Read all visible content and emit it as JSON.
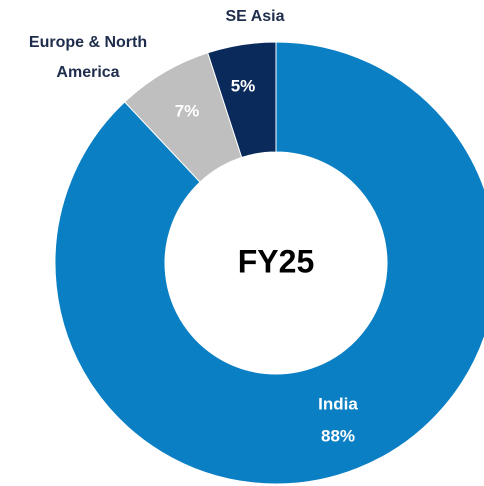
{
  "chart_data": {
    "type": "donut",
    "center_label": "FY25",
    "categories": [
      "India",
      "Europe & North America",
      "SE Asia"
    ],
    "values": [
      88,
      7,
      5
    ],
    "value_labels": [
      "88%",
      "7%",
      "5%"
    ],
    "colors": [
      "#0b7fc3",
      "#bfbfbf",
      "#0b2a5c"
    ]
  }
}
